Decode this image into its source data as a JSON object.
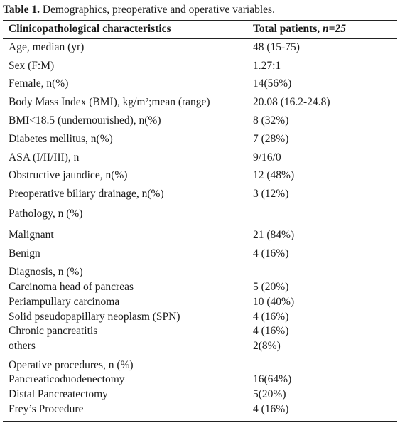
{
  "caption": {
    "label": "Table 1.",
    "text": "Demographics, preoperative and operative variables."
  },
  "header": {
    "columns": [
      "Clinicopathological characteristics",
      "Total patients,"
    ],
    "italic": "n=25"
  },
  "rows": [
    [
      "Age, median (yr)",
      "48 (15-75)"
    ],
    [
      "Sex (F:M)",
      "1.27:1"
    ],
    [
      "Female, n(%)",
      "14(56%)"
    ],
    [
      "Body Mass Index (BMI), kg/m²;mean (range)",
      "20.08 (16.2-24.8)"
    ],
    [
      "BMI<18.5 (undernourished), n(%)",
      "8 (32%)"
    ],
    [
      "Diabetes mellitus, n(%)",
      "7 (28%)"
    ],
    [
      "ASA (I/II/III), n",
      "9/16/0"
    ],
    [
      "Obstructive jaundice, n(%)",
      "12 (48%)"
    ],
    [
      "Preoperative biliary drainage, n(%)",
      "3 (12%)"
    ],
    [
      "Pathology, n (%)"
    ],
    [
      "Malignant",
      "21 (84%)"
    ],
    [
      "Benign",
      "4 (16%)"
    ],
    [
      "Diagnosis, n (%)"
    ],
    [
      "Carcinoma head of pancreas",
      "5 (20%)"
    ],
    [
      "Periampullary carcinoma",
      "10 (40%)"
    ],
    [
      "Solid pseudopapillary neoplasm (SPN)",
      "4 (16%)"
    ],
    [
      "Chronic pancreatitis",
      "4 (16%)"
    ],
    [
      "others",
      "2(8%)"
    ],
    [
      "Operative procedures, n (%)"
    ],
    [
      "Pancreaticoduodenectomy",
      "16(64%)"
    ],
    [
      "Distal Pancreatectomy",
      "5(20%)"
    ],
    [
      "Frey’s Procedure",
      "4 (16%)"
    ]
  ]
}
